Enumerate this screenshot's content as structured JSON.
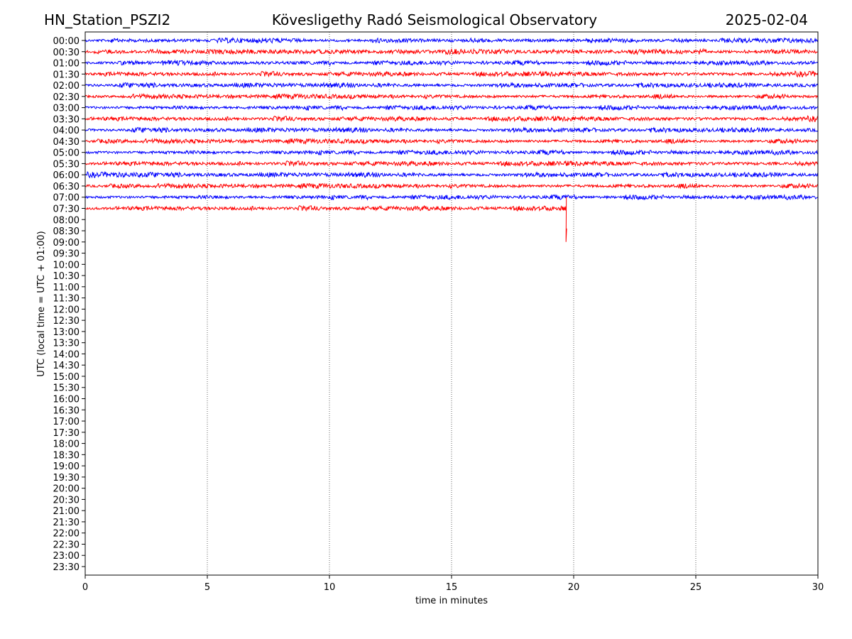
{
  "chart_data": {
    "type": "line",
    "title_left": "HN_Station_PSZI2",
    "title": "Kövesligethy Radó Seismological Observatory",
    "title_right": "2025-02-04",
    "xlabel": "time in minutes",
    "ylabel": "UTC (local time = UTC + 01:00)",
    "xlim": [
      0,
      30
    ],
    "xticks": [
      "0",
      "5",
      "10",
      "15",
      "20",
      "25",
      "30"
    ],
    "xtick_values": [
      0,
      5,
      10,
      15,
      20,
      25,
      30
    ],
    "ylabels": [
      "00:00",
      "00:30",
      "01:00",
      "01:30",
      "02:00",
      "02:30",
      "03:00",
      "03:30",
      "04:00",
      "04:30",
      "05:00",
      "05:30",
      "06:00",
      "06:30",
      "07:00",
      "07:30",
      "08:00",
      "08:30",
      "09:00",
      "09:30",
      "10:00",
      "10:30",
      "11:00",
      "11:30",
      "12:00",
      "12:30",
      "13:00",
      "13:30",
      "14:00",
      "14:30",
      "15:00",
      "15:30",
      "16:00",
      "16:30",
      "17:00",
      "17:30",
      "18:00",
      "18:30",
      "19:00",
      "19:30",
      "20:00",
      "20:30",
      "21:00",
      "21:30",
      "22:00",
      "22:30",
      "23:00",
      "23:30"
    ],
    "grid": "vertical dotted at x ticks",
    "series_colors": [
      "#0000ff",
      "#ff0000"
    ],
    "rows_with_data": 16,
    "last_row_end_minute": 19.7,
    "spike": {
      "row": "07:30",
      "minute": 19.7,
      "amplitude_rows_down": 3,
      "amplitude_rows_up": 1
    }
  }
}
